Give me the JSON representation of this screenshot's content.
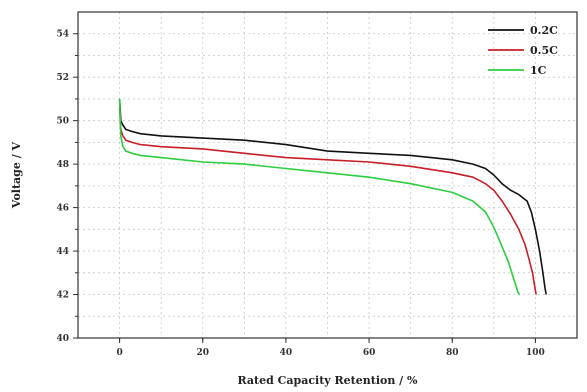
{
  "chart_data": {
    "type": "line",
    "title": "",
    "xlabel": "Rated Capacity Retention / %",
    "ylabel": "Voltage / V",
    "xlim": [
      -10,
      110
    ],
    "ylim": [
      40,
      55
    ],
    "xticks": [
      0,
      20,
      40,
      60,
      80,
      100
    ],
    "yticks": [
      40,
      42,
      44,
      46,
      48,
      50,
      52,
      54
    ],
    "grid": true,
    "legend_position": "top-right",
    "series": [
      {
        "name": "0.2C",
        "color": "#111111",
        "x": [
          0,
          0.3,
          0.8,
          1.5,
          3,
          5,
          10,
          20,
          30,
          40,
          50,
          60,
          70,
          80,
          85,
          88,
          90,
          92,
          94,
          96,
          98,
          99,
          100,
          101,
          101.8,
          102.3,
          102.6
        ],
        "y": [
          51.0,
          50.0,
          49.8,
          49.6,
          49.5,
          49.4,
          49.3,
          49.2,
          49.1,
          48.9,
          48.6,
          48.5,
          48.4,
          48.2,
          48.0,
          47.8,
          47.5,
          47.1,
          46.8,
          46.6,
          46.3,
          45.8,
          45.0,
          44.0,
          43.0,
          42.3,
          42.0
        ]
      },
      {
        "name": "0.5C",
        "color": "#c81e28",
        "x": [
          0,
          0.3,
          0.8,
          1.5,
          3,
          5,
          10,
          20,
          30,
          40,
          50,
          60,
          70,
          80,
          85,
          88,
          90,
          92,
          94,
          96,
          97.5,
          98.5,
          99.3,
          99.8,
          100.2
        ],
        "y": [
          50.6,
          49.6,
          49.3,
          49.1,
          49.0,
          48.9,
          48.8,
          48.7,
          48.5,
          48.3,
          48.2,
          48.1,
          47.9,
          47.6,
          47.4,
          47.1,
          46.8,
          46.3,
          45.7,
          45.0,
          44.3,
          43.6,
          43.0,
          42.4,
          42.0
        ]
      },
      {
        "name": "1C",
        "color": "#2ecc40",
        "x": [
          0,
          0.3,
          0.8,
          1.5,
          3,
          5,
          10,
          20,
          30,
          40,
          50,
          60,
          70,
          80,
          85,
          88,
          90,
          92,
          93.5,
          94.5,
          95.3,
          95.8,
          96.2
        ],
        "y": [
          51.0,
          49.3,
          48.8,
          48.6,
          48.5,
          48.4,
          48.3,
          48.1,
          48.0,
          47.8,
          47.6,
          47.4,
          47.1,
          46.7,
          46.3,
          45.8,
          45.1,
          44.2,
          43.5,
          42.9,
          42.4,
          42.1,
          42.0
        ]
      }
    ]
  }
}
